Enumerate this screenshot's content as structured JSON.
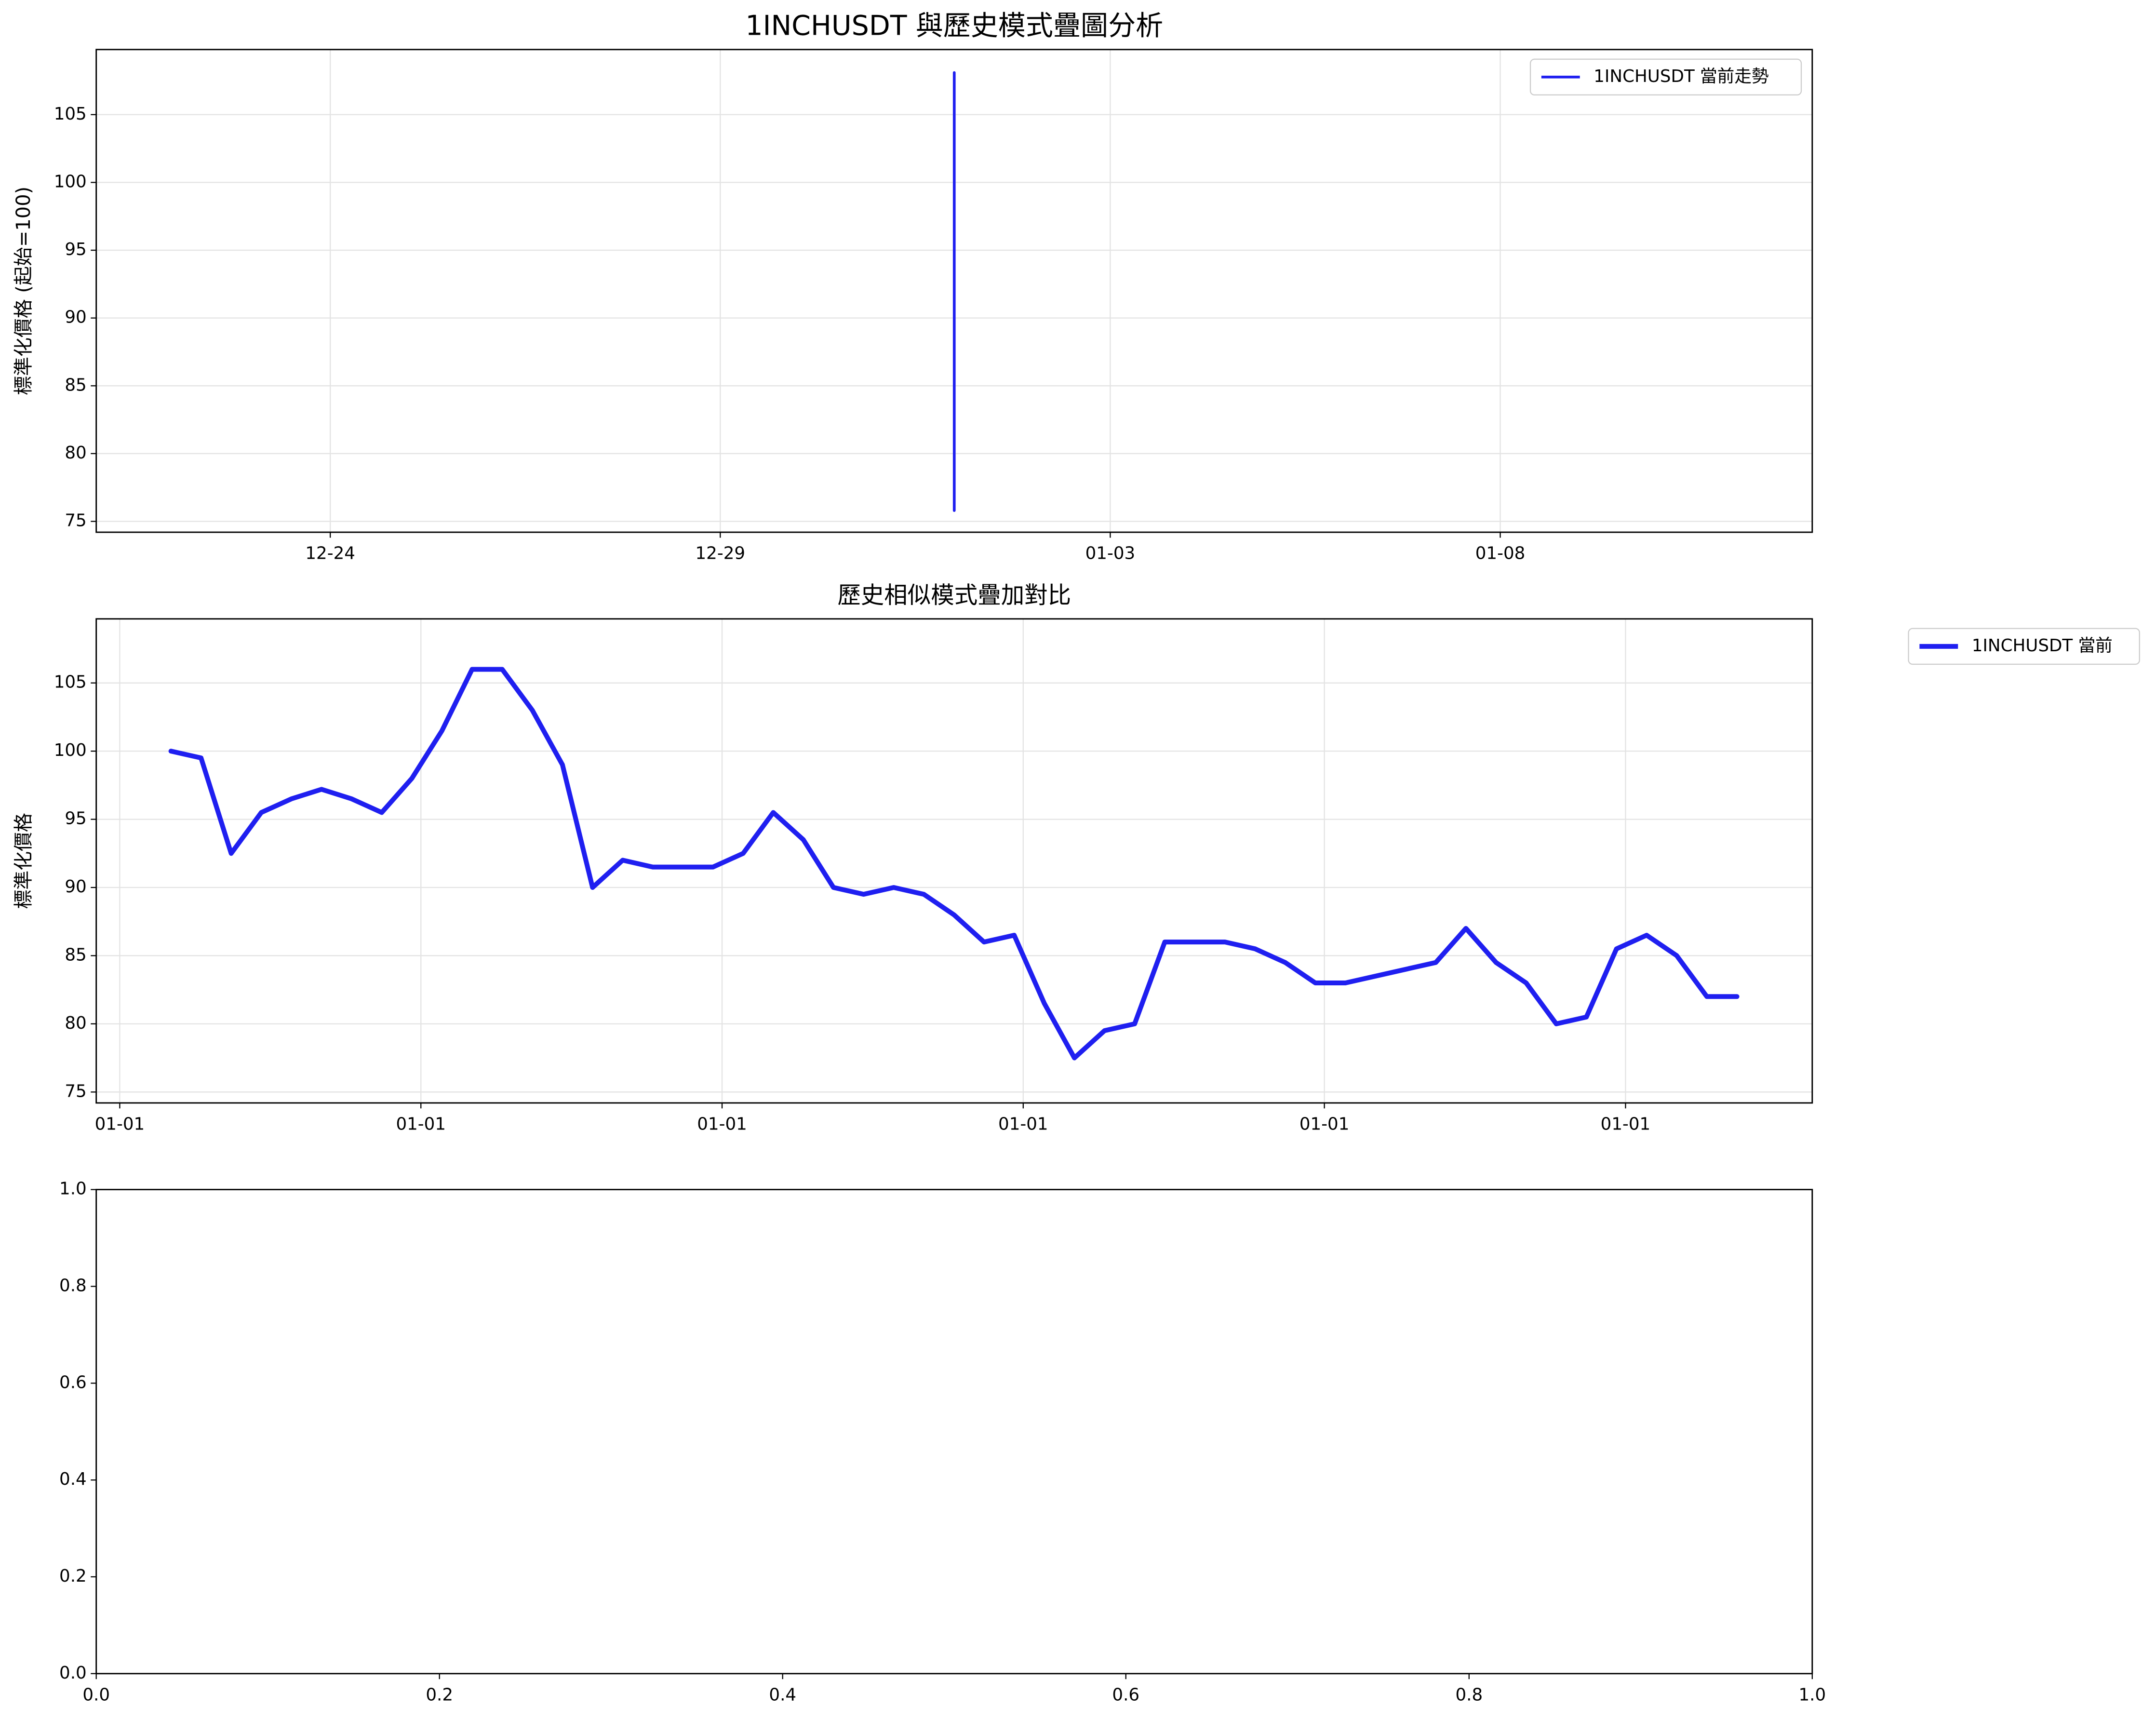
{
  "chart_data": [
    {
      "type": "line",
      "title": "1INCHUSDT 與歷史模式疊圖分析",
      "ylabel": "標準化價格 (起始=100)",
      "x": [
        0,
        0
      ],
      "series": [
        {
          "name": "1INCHUSDT 當前走勢",
          "color": "#1f1ff0",
          "values": [
            75.8,
            108.1
          ]
        }
      ],
      "xlim": [
        -11,
        11
      ],
      "xticks": [
        {
          "value": -8,
          "label": "12-24"
        },
        {
          "value": -3,
          "label": "12-29"
        },
        {
          "value": 2,
          "label": "01-03"
        },
        {
          "value": 7,
          "label": "01-08"
        }
      ],
      "ylim": [
        74.2,
        109.8
      ],
      "yticks": [
        75,
        80,
        85,
        90,
        95,
        100,
        105
      ],
      "grid": true,
      "legend": "upper right"
    },
    {
      "type": "line",
      "title": "歷史相似模式疊加對比",
      "ylabel": "標準化價格",
      "x": [
        0.17,
        0.27,
        0.37,
        0.47,
        0.57,
        0.67,
        0.77,
        0.87,
        0.97,
        1.07,
        1.17,
        1.27,
        1.37,
        1.47,
        1.57,
        1.67,
        1.77,
        1.87,
        1.97,
        2.07,
        2.17,
        2.27,
        2.37,
        2.47,
        2.57,
        2.67,
        2.77,
        2.87,
        2.97,
        3.07,
        3.17,
        3.27,
        3.37,
        3.47,
        3.57,
        3.67,
        3.77,
        3.87,
        3.97,
        4.07,
        4.17,
        4.27,
        4.37,
        4.47,
        4.57,
        4.67,
        4.77,
        4.87,
        4.97,
        5.07,
        5.17,
        5.27,
        5.37
      ],
      "series": [
        {
          "name": "1INCHUSDT 當前",
          "color": "#1f1ff0",
          "values": [
            100,
            99.5,
            92.5,
            95.5,
            96.5,
            97.2,
            96.5,
            95.5,
            98,
            101.5,
            106,
            106,
            103,
            99,
            90,
            92,
            91.5,
            91.5,
            91.5,
            92.5,
            95.5,
            93.5,
            90,
            89.5,
            90,
            89.5,
            88,
            86,
            86.5,
            81.5,
            77.5,
            79.5,
            80,
            86,
            86,
            86,
            85.5,
            84.5,
            83,
            83,
            83.5,
            84,
            84.5,
            87,
            84.5,
            83,
            80,
            80.5,
            85.5,
            86.5,
            85,
            82,
            82
          ]
        }
      ],
      "xlim": [
        -0.078,
        5.62
      ],
      "xticks": [
        {
          "value": 0,
          "label": "01-01"
        },
        {
          "value": 1,
          "label": "01-01"
        },
        {
          "value": 2,
          "label": "01-01"
        },
        {
          "value": 3,
          "label": "01-01"
        },
        {
          "value": 4,
          "label": "01-01"
        },
        {
          "value": 5,
          "label": "01-01"
        }
      ],
      "ylim": [
        74.2,
        109.7
      ],
      "yticks": [
        75,
        80,
        85,
        90,
        95,
        100,
        105
      ],
      "grid": true,
      "legend": "outside upper right"
    },
    {
      "type": "line",
      "series": [],
      "xlim": [
        0,
        1
      ],
      "xticks": [
        {
          "value": 0,
          "label": "0.0"
        },
        0.2,
        0.4,
        0.6,
        0.8,
        {
          "value": 1,
          "label": "1.0"
        }
      ],
      "ylim": [
        0,
        1
      ],
      "yticks": [
        {
          "value": 0,
          "label": "0.0"
        },
        0.2,
        0.4,
        0.6,
        0.8,
        {
          "value": 1,
          "label": "1.0"
        }
      ],
      "grid": false
    }
  ]
}
